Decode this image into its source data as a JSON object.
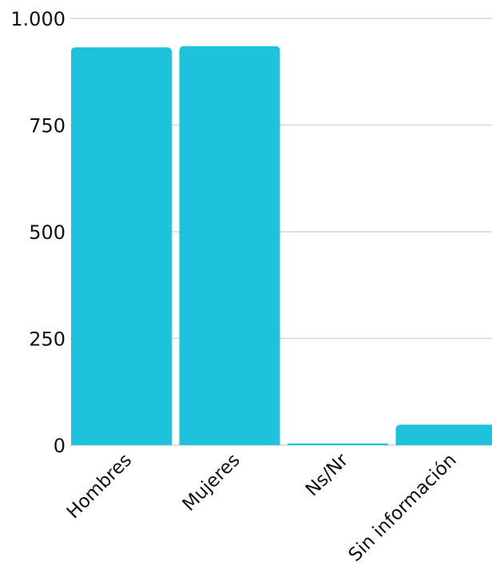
{
  "chart_data": {
    "type": "bar",
    "categories": [
      "Hombres",
      "Mujeres",
      "Ns/Nr",
      "Sin información"
    ],
    "values": [
      932,
      935,
      4,
      48
    ],
    "yticks": [
      0,
      250,
      500,
      750,
      1000
    ],
    "ytick_labels": [
      "0",
      "250",
      "500",
      "750",
      "1.000"
    ],
    "ylim": [
      0,
      1000
    ],
    "title": "",
    "xlabel": "",
    "ylabel": "",
    "grid": true,
    "colors": {
      "bar": "#1fc2dc",
      "grid": "#d6d6d6",
      "text": "#111111"
    }
  }
}
